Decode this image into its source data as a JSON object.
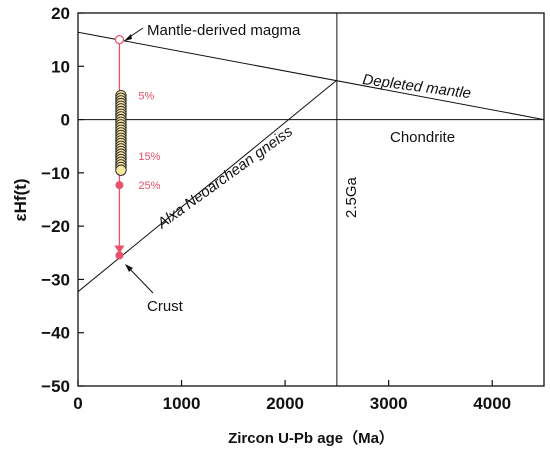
{
  "chart_data": {
    "type": "scatter",
    "xlabel": "Zircon U-Pb age（Ma）",
    "ylabel": "εHf(t)",
    "xlim": [
      0,
      4500
    ],
    "ylim": [
      -50,
      20
    ],
    "x_ticks": [
      "0",
      "1000",
      "2000",
      "3000",
      "4000"
    ],
    "y_ticks": [
      "20",
      "10",
      "0",
      "−10",
      "−20",
      "−30",
      "−40",
      "−50"
    ],
    "zero_line": 0,
    "reference_lines": [
      {
        "name": "Depleted mantle",
        "points": [
          [
            0,
            16.4
          ],
          [
            4500,
            0
          ]
        ]
      },
      {
        "name": "Alxa Neoarchean gneiss",
        "points": [
          [
            0,
            -32.3
          ],
          [
            2500,
            7.4
          ]
        ]
      },
      {
        "name": "2.5Ga",
        "x": 2500
      }
    ],
    "labels": {
      "mantle": "Mantle-derived magma",
      "depleted": "Depleted mantle",
      "chondrite": "Chondrite",
      "gneiss": "Alxa Neoarchean gneiss",
      "age": "2.5Ga",
      "crust": "Crust"
    },
    "samples": {
      "x": 415,
      "y": [
        4.5,
        4.0,
        3.5,
        3.0,
        2.5,
        2.0,
        1.5,
        1.0,
        0.5,
        0.0,
        -0.5,
        -1.0,
        -1.5,
        -2.0,
        -2.5,
        -3.0,
        -3.5,
        -4.0,
        -4.5,
        -5.0,
        -5.5,
        -6.0,
        -6.5,
        -7.0,
        -7.5,
        -8.0,
        -8.5,
        -9.0,
        -9.5
      ],
      "color": "#f7e6a0"
    },
    "mixing_line": {
      "x": 400,
      "from": 15,
      "to": -25.5,
      "color": "#e8506b",
      "endpoints": [
        {
          "name": "Mantle-derived magma",
          "y": 15
        },
        {
          "name": "Crust",
          "y": -25.5
        }
      ],
      "marks": [
        {
          "label": "5%",
          "y": 4.5
        },
        {
          "label": "",
          "y": -2.3
        },
        {
          "label": "15%",
          "y": -6.8
        },
        {
          "label": "25%",
          "y": -12.3
        }
      ]
    }
  }
}
